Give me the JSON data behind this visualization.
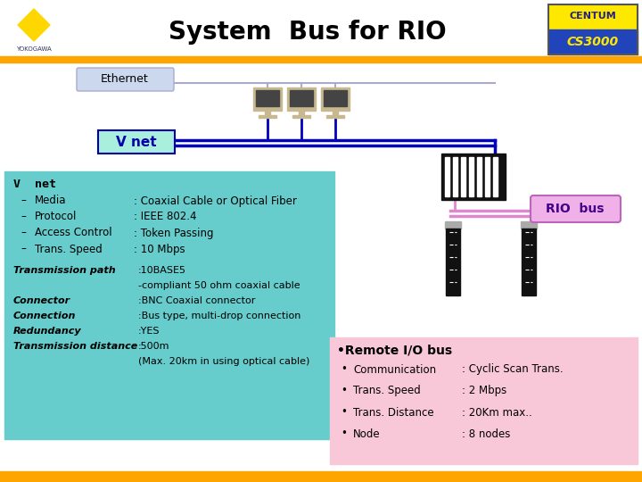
{
  "title": "System  Bus for RIO",
  "title_fontsize": 20,
  "title_color": "#000000",
  "bg_color": "#ffffff",
  "orange_bar_color": "#FFA500",
  "yokogawa_text": "YOKOGAWA",
  "yokogawa_diamond_color": "#FFD700",
  "centum_bg_yellow": "#FFE800",
  "centum_bg_blue": "#2244bb",
  "centum_text_top": "CENTUM",
  "centum_text_bot": "CS3000",
  "ethernet_label": "Ethernet",
  "vnet_label": "V net",
  "vnet_box_color": "#66cccc",
  "ethernet_box_color": "#ccd8ee",
  "rio_bus_label": "RIO  bus",
  "rio_bus_box_color": "#f0b0e8",
  "remote_io_label": "•Remote I/O bus",
  "remote_io_box_color": "#f8c8d8",
  "vnet_info_title": "V  net",
  "vnet_bullets": [
    [
      "Media",
      ": Coaxial Cable or Optical Fiber"
    ],
    [
      "Protocol",
      ": IEEE 802.4"
    ],
    [
      "Access Control",
      ": Token Passing"
    ],
    [
      "Trans. Speed",
      ": 10 Mbps"
    ]
  ],
  "transmission_lines": [
    [
      "Transmission path",
      ":10BASE5"
    ],
    [
      "",
      "-compliant 50 ohm coaxial cable"
    ],
    [
      "Connector",
      ":BNC Coaxial connector"
    ],
    [
      "Connection",
      ":Bus type, multi-drop connection"
    ],
    [
      "Redundancy",
      ":YES"
    ],
    [
      "Transmission distance",
      ":500m"
    ],
    [
      "",
      "(Max. 20km in using optical cable)"
    ]
  ],
  "remote_io_bullets": [
    [
      "Communication",
      ": Cyclic Scan Trans."
    ],
    [
      "Trans. Speed",
      ": 2 Mbps"
    ],
    [
      "Trans. Distance",
      ": 20Km max.."
    ],
    [
      "Node",
      ": 8 nodes"
    ]
  ],
  "bottom_bar_color": "#FFA500",
  "vnet_line_color": "#0000bb",
  "rio_cable_color": "#dd88cc",
  "white_bg": "#ffffff",
  "gray_bg": "#e8e8e8"
}
